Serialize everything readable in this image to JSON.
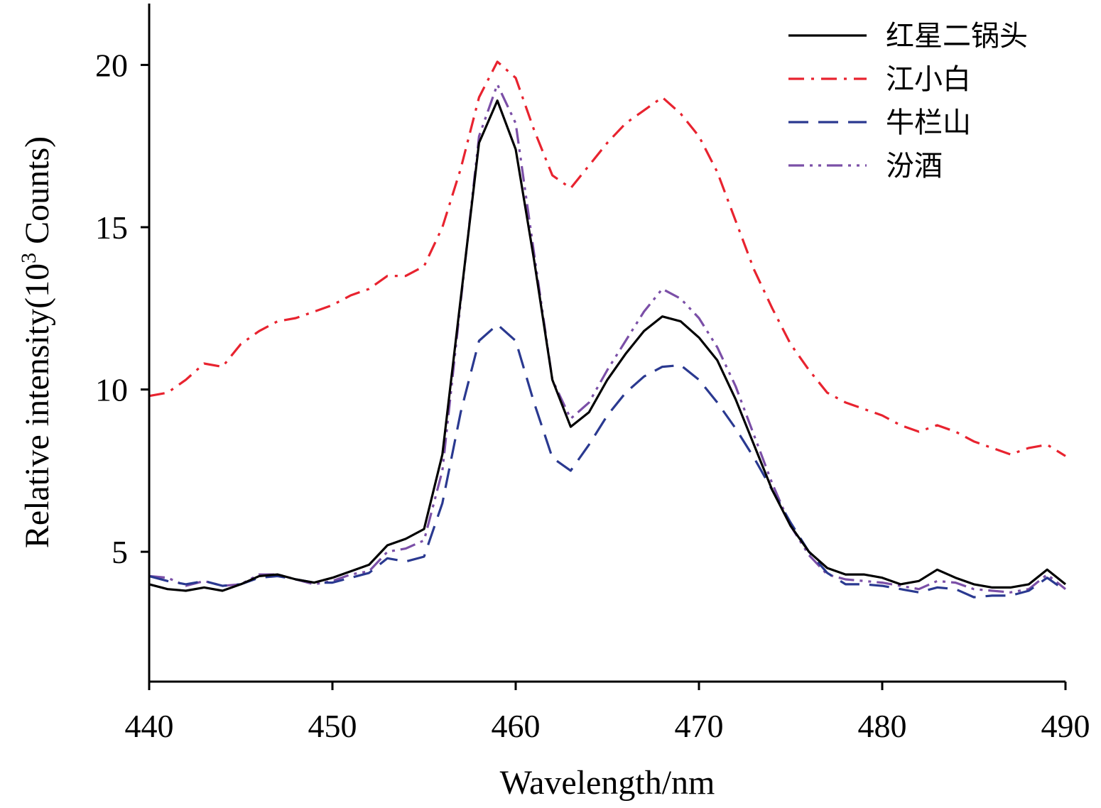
{
  "chart_data": {
    "type": "line",
    "xlabel": "Wavelength/nm",
    "ylabel": "Relative intensity(10",
    "ylabel_sup": "3",
    "ylabel_end": " Counts)",
    "xlim": [
      440,
      490
    ],
    "ylim": [
      1.0,
      22.0
    ],
    "xticks": [
      440,
      450,
      460,
      470,
      480,
      490
    ],
    "yticks": [
      5,
      10,
      15,
      20
    ],
    "grid": false,
    "legend_position": "top-right",
    "x": [
      440,
      441,
      442,
      443,
      444,
      445,
      446,
      447,
      448,
      449,
      450,
      451,
      452,
      453,
      454,
      455,
      456,
      457,
      458,
      459,
      460,
      461,
      462,
      463,
      464,
      465,
      466,
      467,
      468,
      469,
      470,
      471,
      472,
      473,
      474,
      475,
      476,
      477,
      478,
      479,
      480,
      481,
      482,
      483,
      484,
      485,
      486,
      487,
      488,
      489,
      490
    ],
    "series": [
      {
        "name": "红星二锅头",
        "color": "#000000",
        "dash": "solid",
        "values": [
          4.0,
          3.85,
          3.8,
          3.9,
          3.8,
          4.0,
          4.25,
          4.3,
          4.15,
          4.05,
          4.2,
          4.4,
          4.6,
          5.2,
          5.4,
          5.7,
          8.0,
          12.8,
          17.6,
          18.9,
          17.4,
          14.0,
          10.3,
          8.85,
          9.3,
          10.3,
          11.1,
          11.8,
          12.25,
          12.1,
          11.6,
          10.9,
          9.7,
          8.3,
          6.9,
          5.8,
          5.0,
          4.5,
          4.3,
          4.3,
          4.2,
          4.0,
          4.1,
          4.45,
          4.2,
          4.0,
          3.9,
          3.9,
          4.0,
          4.45,
          4.0
        ]
      },
      {
        "name": "江小白",
        "color": "#e8232f",
        "dash": "dashdot",
        "values": [
          9.8,
          9.9,
          10.3,
          10.8,
          10.7,
          11.4,
          11.8,
          12.1,
          12.2,
          12.4,
          12.6,
          12.9,
          13.1,
          13.5,
          13.5,
          13.8,
          15.0,
          16.8,
          19.0,
          20.1,
          19.6,
          18.0,
          16.6,
          16.2,
          16.9,
          17.6,
          18.2,
          18.6,
          19.0,
          18.5,
          17.8,
          16.7,
          15.2,
          13.7,
          12.5,
          11.4,
          10.6,
          9.9,
          9.6,
          9.4,
          9.2,
          8.9,
          8.7,
          8.9,
          8.7,
          8.4,
          8.2,
          8.0,
          8.2,
          8.3,
          7.95
        ]
      },
      {
        "name": "牛栏山",
        "color": "#2a3990",
        "dash": "dashed",
        "values": [
          4.25,
          4.1,
          4.0,
          4.1,
          3.95,
          4.0,
          4.2,
          4.25,
          4.15,
          4.05,
          4.05,
          4.2,
          4.35,
          4.8,
          4.7,
          4.85,
          6.5,
          9.3,
          11.5,
          12.0,
          11.5,
          9.6,
          7.9,
          7.5,
          8.3,
          9.2,
          9.9,
          10.4,
          10.7,
          10.75,
          10.3,
          9.6,
          8.8,
          7.9,
          6.9,
          5.9,
          5.0,
          4.35,
          4.0,
          4.0,
          3.95,
          3.85,
          3.75,
          3.9,
          3.85,
          3.6,
          3.65,
          3.65,
          3.8,
          4.2,
          3.8
        ]
      },
      {
        "name": "汾酒",
        "color": "#7b4fa7",
        "dash": "dashdotdot",
        "values": [
          4.25,
          4.2,
          3.95,
          4.1,
          3.95,
          4.0,
          4.3,
          4.3,
          4.15,
          4.0,
          4.1,
          4.3,
          4.4,
          5.0,
          5.1,
          5.35,
          7.5,
          12.7,
          17.8,
          19.4,
          18.2,
          14.2,
          10.3,
          9.1,
          9.6,
          10.6,
          11.5,
          12.4,
          13.1,
          12.8,
          12.2,
          11.3,
          10.1,
          8.6,
          7.1,
          5.8,
          4.9,
          4.3,
          4.15,
          4.1,
          4.05,
          3.95,
          3.85,
          4.1,
          4.05,
          3.85,
          3.8,
          3.75,
          3.85,
          4.3,
          3.85
        ]
      }
    ]
  }
}
